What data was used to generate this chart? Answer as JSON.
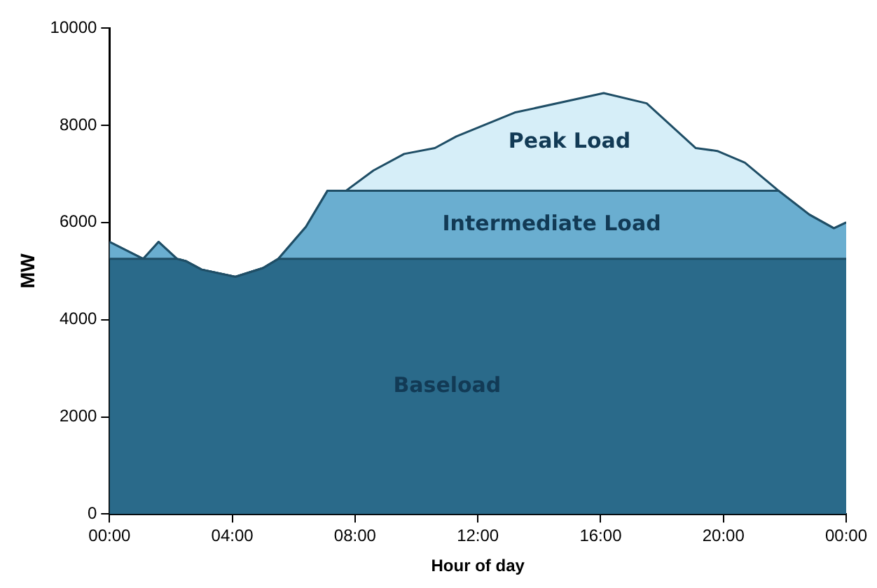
{
  "chart_data": {
    "type": "area",
    "stacked": true,
    "xlabel": "Hour of day",
    "ylabel": "MW",
    "x": [
      0,
      1.1,
      1.6,
      2.2,
      2.5,
      3.0,
      4.1,
      5.0,
      5.5,
      6.4,
      7.1,
      7.7,
      8.6,
      9.6,
      10.6,
      11.3,
      13.2,
      16.1,
      17.5,
      19.1,
      19.8,
      20.7,
      21.8,
      22.8,
      23.6,
      24
    ],
    "series": [
      {
        "name": "Baseload",
        "color": "#2a6a8a",
        "values": [
          5250,
          5250,
          5250,
          5250,
          5200,
          5030,
          4880,
          5060,
          5250,
          5250,
          5250,
          5250,
          5250,
          5250,
          5250,
          5250,
          5250,
          5250,
          5250,
          5250,
          5250,
          5250,
          5250,
          5250,
          5250,
          5250
        ]
      },
      {
        "name": "Intermediate Load",
        "color": "#6aaed0",
        "values": [
          350,
          0,
          350,
          0,
          0,
          0,
          0,
          0,
          0,
          660,
          1400,
          1400,
          1400,
          1400,
          1400,
          1400,
          1400,
          1400,
          1400,
          1400,
          1400,
          1400,
          1400,
          910,
          630,
          750
        ]
      },
      {
        "name": "Peak Load",
        "color": "#d6eef8",
        "values": [
          0,
          0,
          0,
          0,
          0,
          0,
          0,
          0,
          0,
          0,
          0,
          0,
          420,
          760,
          880,
          1120,
          1610,
          2010,
          1800,
          880,
          820,
          580,
          0,
          0,
          0,
          0
        ]
      }
    ],
    "xlim": [
      0,
      24
    ],
    "xticks": [
      {
        "value": 0,
        "label": "00:00"
      },
      {
        "value": 4,
        "label": "04:00"
      },
      {
        "value": 8,
        "label": "08:00"
      },
      {
        "value": 12,
        "label": "12:00"
      },
      {
        "value": 16,
        "label": "16:00"
      },
      {
        "value": 20,
        "label": "20:00"
      },
      {
        "value": 24,
        "label": "00:00"
      }
    ],
    "ylim": [
      0,
      10000
    ],
    "yticks": [
      0,
      2000,
      4000,
      6000,
      8000,
      10000
    ],
    "grid": false,
    "legend": false
  }
}
